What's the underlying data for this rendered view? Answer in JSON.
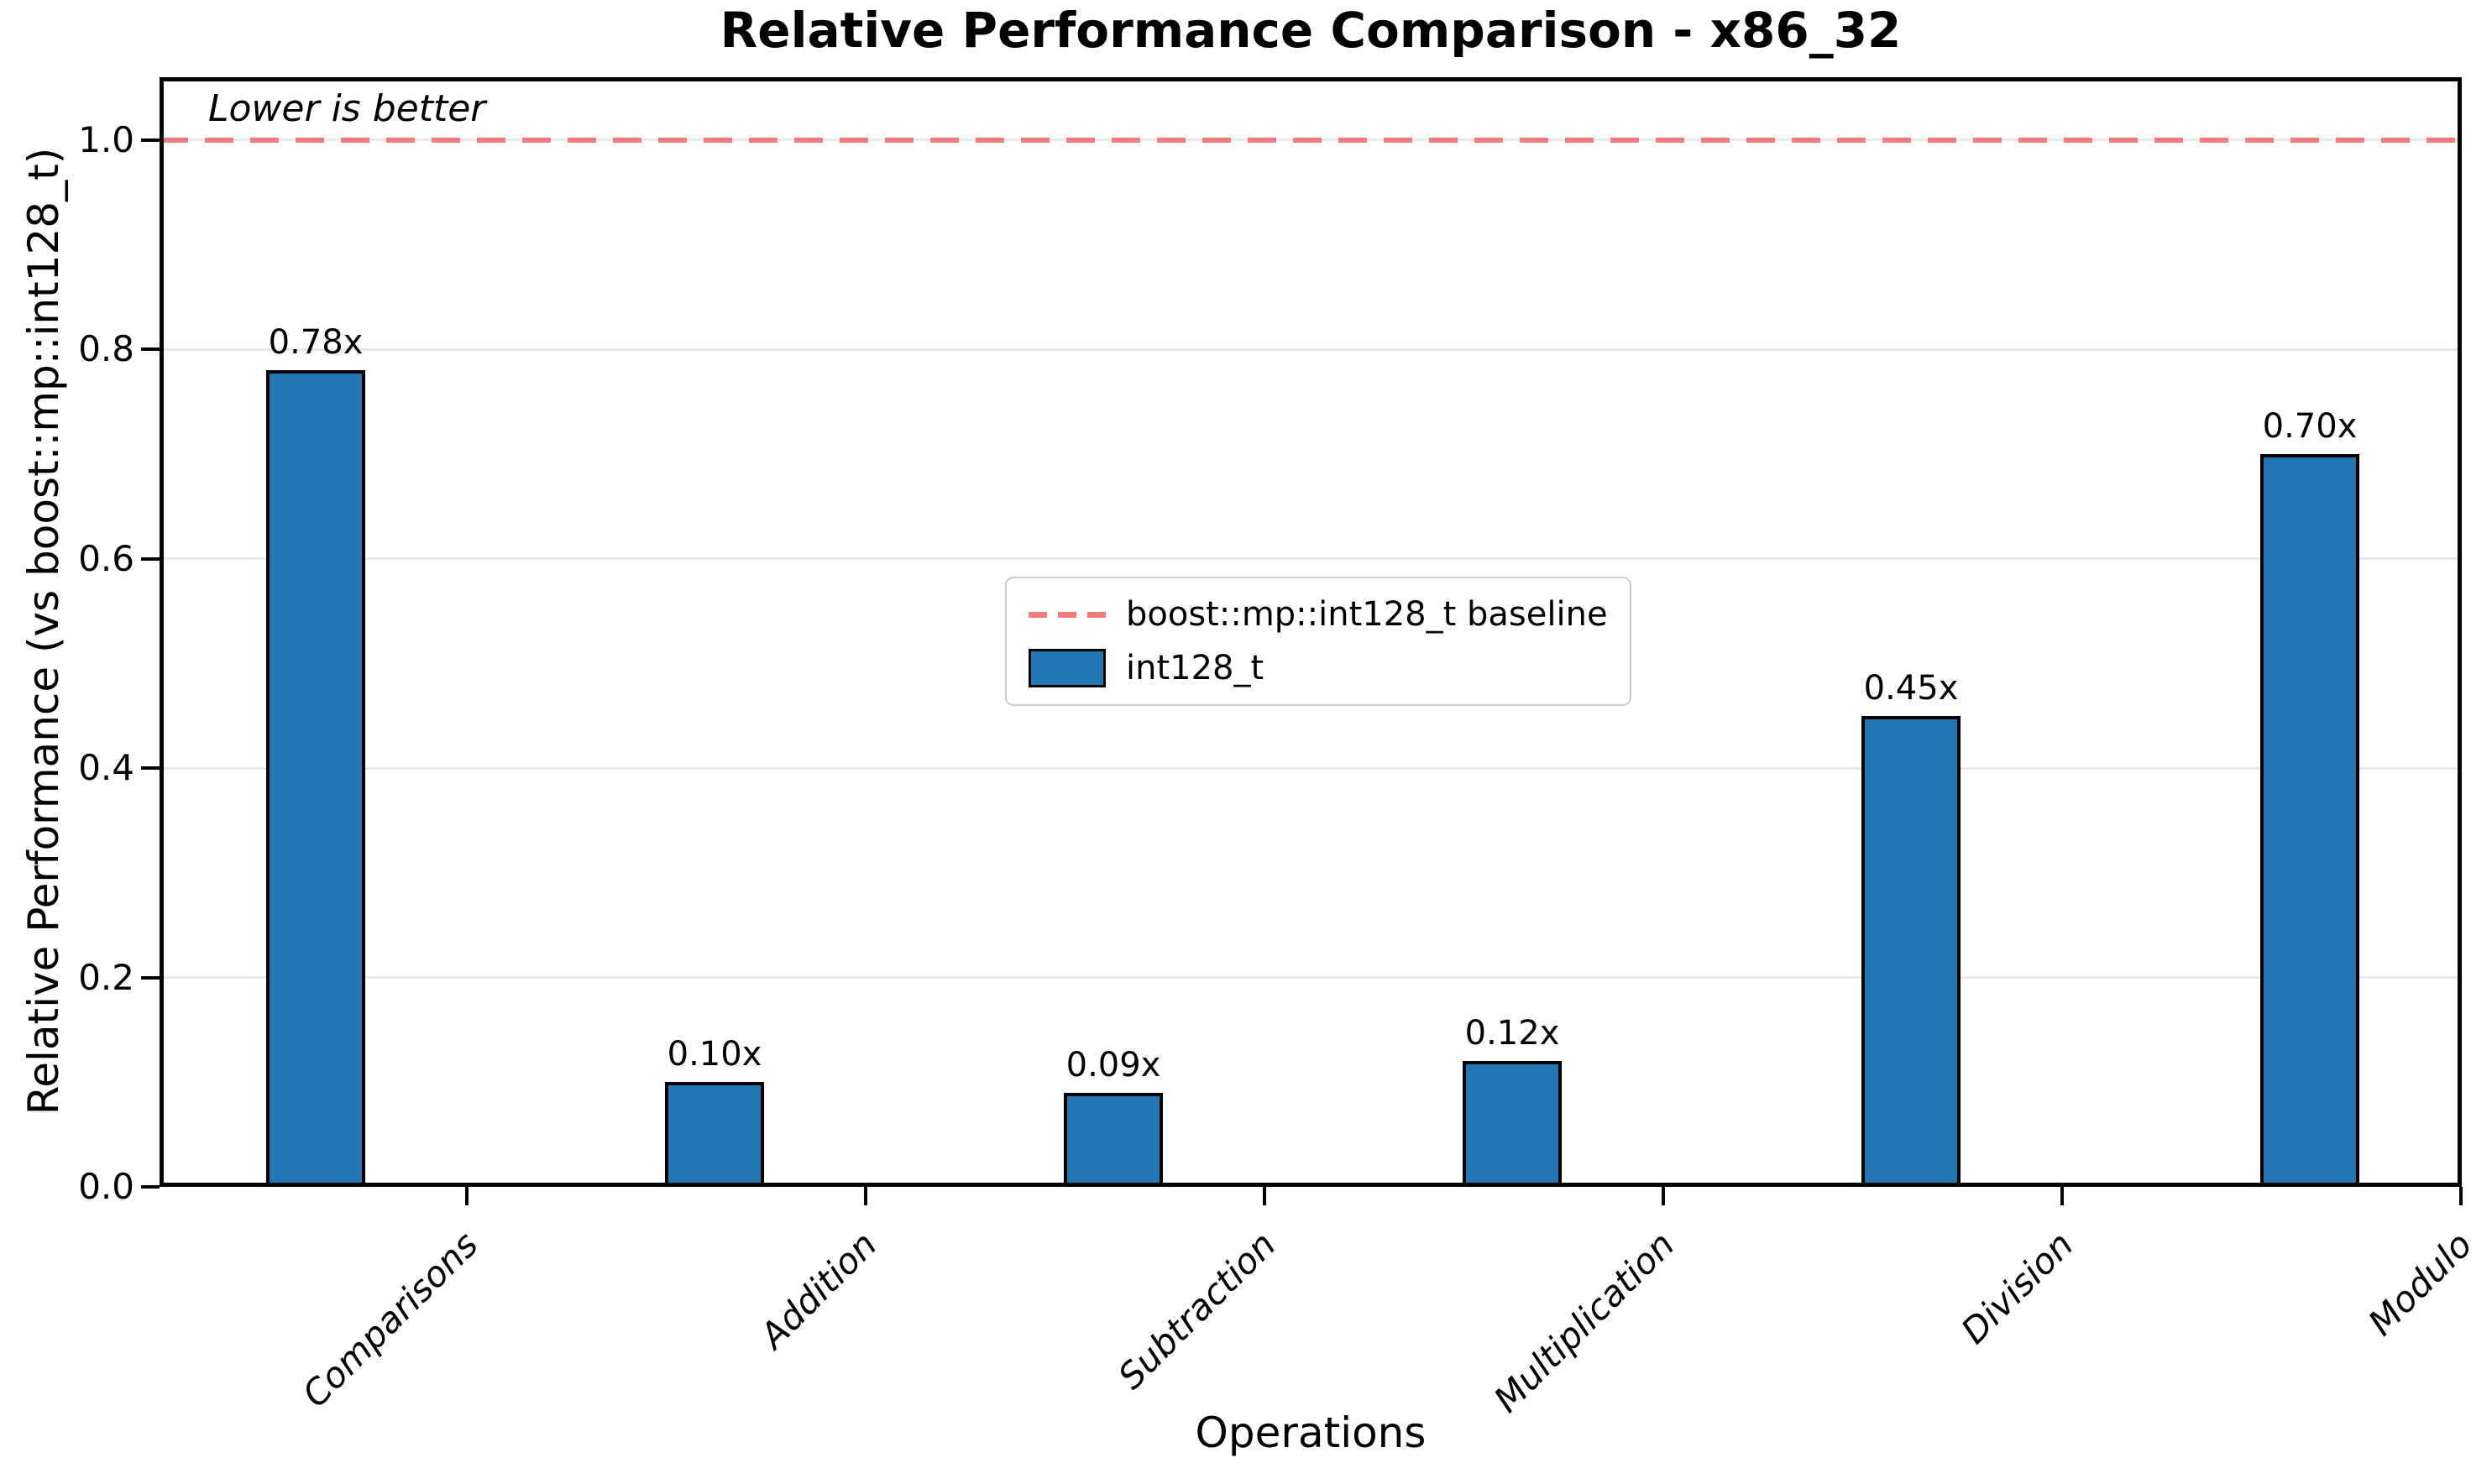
{
  "chart_data": {
    "type": "bar",
    "title": "Relative Performance Comparison - x86_32",
    "xlabel": "Operations",
    "ylabel": "Relative Performance (vs boost::mp::int128_t)",
    "annotation": "Lower is better",
    "categories": [
      "Comparisons",
      "Addition",
      "Subtraction",
      "Multiplication",
      "Division",
      "Modulo"
    ],
    "series": [
      {
        "name": "int128_t",
        "values": [
          0.78,
          0.1,
          0.09,
          0.12,
          0.45,
          0.7
        ]
      }
    ],
    "bar_value_labels": [
      "0.78x",
      "0.10x",
      "0.09x",
      "0.12x",
      "0.45x",
      "0.70x"
    ],
    "baseline": {
      "value": 1.0,
      "label": "boost::mp::int128_t baseline"
    },
    "ylim": [
      0,
      1.06
    ],
    "ytick_labels": [
      "0.0",
      "0.2",
      "0.4",
      "0.6",
      "0.8",
      "1.0"
    ],
    "grid": true,
    "legend": {
      "position": "upper center",
      "entries": [
        {
          "label": "boost::mp::int128_t baseline",
          "type": "dashed-line",
          "color": "#f27c7c"
        },
        {
          "label": "int128_t",
          "type": "bar",
          "color": "#2077b4"
        }
      ]
    },
    "colors": {
      "bar": "#2077b4",
      "bar_edge": "#000000",
      "baseline": "#f27c7c",
      "grid": "#e9e9e9"
    }
  }
}
